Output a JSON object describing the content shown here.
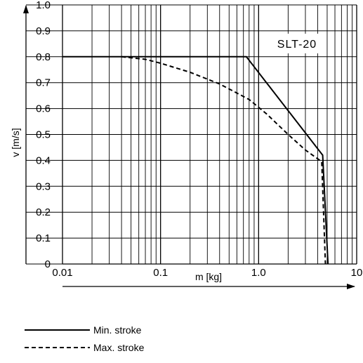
{
  "chart_data": {
    "type": "line",
    "title": "",
    "annotation": "SLT-20",
    "xlabel": "m [kg]",
    "ylabel": "v [m/s]",
    "x_scale": "log",
    "xlim": [
      0.01,
      10
    ],
    "ylim": [
      0,
      1.0
    ],
    "x_ticks": [
      {
        "value": 0.01,
        "label": "0.01"
      },
      {
        "value": 0.1,
        "label": "0.1"
      },
      {
        "value": 1,
        "label": "1.0"
      },
      {
        "value": 10,
        "label": "10"
      }
    ],
    "y_ticks": [
      {
        "value": 0,
        "label": "0"
      },
      {
        "value": 0.1,
        "label": "0.1"
      },
      {
        "value": 0.2,
        "label": "0.2"
      },
      {
        "value": 0.3,
        "label": "0.3"
      },
      {
        "value": 0.4,
        "label": "0.4"
      },
      {
        "value": 0.5,
        "label": "0.5"
      },
      {
        "value": 0.6,
        "label": "0.6"
      },
      {
        "value": 0.7,
        "label": "0.7"
      },
      {
        "value": 0.8,
        "label": "0.8"
      },
      {
        "value": 0.9,
        "label": "0.9"
      },
      {
        "value": 1.0,
        "label": "1.0"
      }
    ],
    "grid": true,
    "legend_position": "bottom-left",
    "series": [
      {
        "name": "Min. stroke",
        "style": "solid",
        "x": [
          0.01,
          0.75,
          4.5,
          5.1
        ],
        "y": [
          0.8,
          0.8,
          0.42,
          0.0
        ]
      },
      {
        "name": "Max. stroke",
        "style": "dashed",
        "x": [
          0.04,
          0.07,
          0.1,
          0.2,
          0.4,
          0.8,
          1.2,
          2.0,
          3.0,
          4.4,
          4.8
        ],
        "y": [
          0.8,
          0.79,
          0.775,
          0.74,
          0.695,
          0.635,
          0.58,
          0.5,
          0.44,
          0.395,
          0.0
        ]
      }
    ]
  }
}
